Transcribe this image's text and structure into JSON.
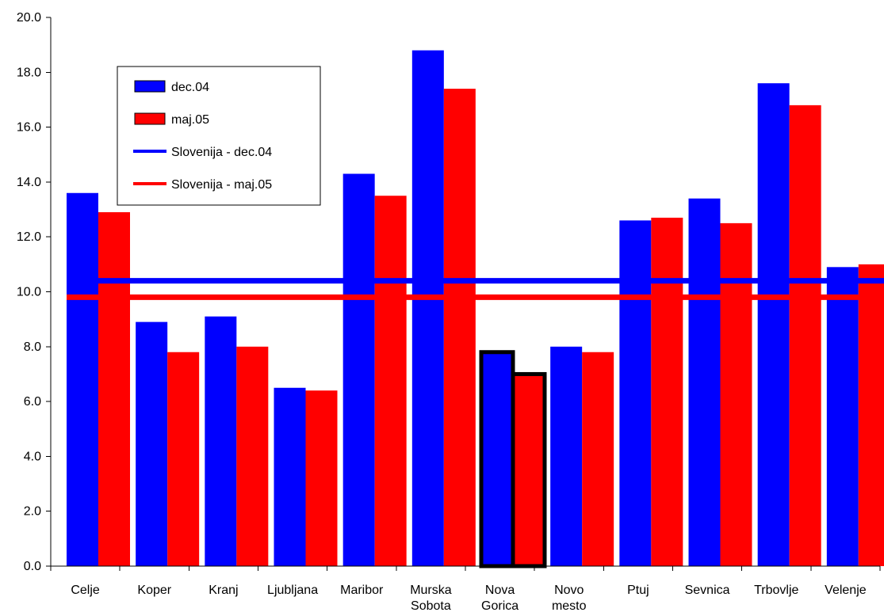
{
  "chart_data": {
    "type": "bar",
    "title": "",
    "xlabel": "",
    "ylabel": "",
    "ylim": [
      0,
      20
    ],
    "ytick_labels": [
      "0.0",
      "2.0",
      "4.0",
      "6.0",
      "8.0",
      "10.0",
      "12.0",
      "14.0",
      "16.0",
      "18.0",
      "20.0"
    ],
    "categories": [
      "Celje",
      "Koper",
      "Kranj",
      "Ljubljana",
      "Maribor",
      "Murska Sobota",
      "Nova Gorica",
      "Novo mesto",
      "Ptuj",
      "Sevnica",
      "Trbovlje",
      "Velenje"
    ],
    "series": [
      {
        "name": "dec.04",
        "color": "#0000ff",
        "values": [
          13.6,
          8.9,
          9.1,
          6.5,
          14.3,
          18.8,
          7.8,
          8.0,
          12.6,
          13.4,
          17.6,
          10.9
        ]
      },
      {
        "name": "maj.05",
        "color": "#ff0000",
        "values": [
          12.9,
          7.8,
          8.0,
          6.4,
          13.5,
          17.4,
          7.0,
          7.8,
          12.7,
          12.5,
          16.8,
          11.0
        ]
      }
    ],
    "reference_lines": [
      {
        "name": "Slovenija - dec.04",
        "color": "#0000ff",
        "value": 10.4
      },
      {
        "name": "Slovenija - maj.05",
        "color": "#ff0000",
        "value": 9.8
      }
    ],
    "highlighted_category": "Nova Gorica",
    "highlight_color": "#000000",
    "legend": {
      "position": "top-left",
      "entries": [
        {
          "label": "dec.04",
          "kind": "bar",
          "color": "#0000ff"
        },
        {
          "label": "maj.05",
          "kind": "bar",
          "color": "#ff0000"
        },
        {
          "label": "Slovenija - dec.04",
          "kind": "line",
          "color": "#0000ff"
        },
        {
          "label": "Slovenija - maj.05",
          "kind": "line",
          "color": "#ff0000"
        }
      ]
    },
    "grid": false
  }
}
